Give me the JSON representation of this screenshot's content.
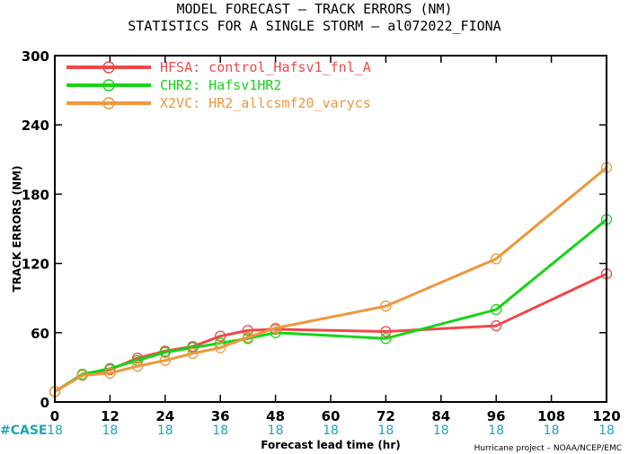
{
  "chart_data": {
    "type": "line",
    "title": "MODEL FORECAST – TRACK ERRORS (NM)",
    "subtitle": "STATISTICS FOR A SINGLE STORM – al072022_FIONA",
    "xlabel": "Forecast lead time (hr)",
    "ylabel": "TRACK ERRORS (NM)",
    "xlim": [
      0,
      120
    ],
    "ylim": [
      0,
      300
    ],
    "x_ticks": [
      "0",
      "12",
      "24",
      "36",
      "48",
      "60",
      "72",
      "84",
      "96",
      "108",
      "120"
    ],
    "y_ticks": [
      "0",
      "60",
      "120",
      "180",
      "240",
      "300"
    ],
    "y_tick_values": [
      0,
      60,
      120,
      180,
      240,
      300
    ],
    "x": [
      0,
      6,
      12,
      18,
      24,
      30,
      36,
      42,
      48,
      72,
      96,
      120
    ],
    "grid": false,
    "legend_position": "top-left",
    "series": [
      {
        "name": "HFSA: control_Hafsv1_fnl_A",
        "color": "#f04848",
        "values": [
          9,
          24,
          28,
          38,
          44,
          48,
          57,
          62,
          63,
          61,
          66,
          111
        ]
      },
      {
        "name": "CHR2: Hafsv1HR2",
        "color": "#18d418",
        "values": [
          9,
          24,
          29,
          36,
          43,
          47,
          51,
          55,
          60,
          55,
          80,
          158
        ]
      },
      {
        "name": "X2VC: HR2_allcsmf20_varycs",
        "color": "#f0963c",
        "values": [
          9,
          23,
          25,
          31,
          36,
          42,
          47,
          56,
          64,
          83,
          124,
          203
        ]
      }
    ],
    "case_label": "#CASE",
    "case_counts": [
      "18",
      "18",
      "18",
      "18",
      "18",
      "18",
      "18",
      "18",
      "18",
      "18",
      "18"
    ],
    "credit": "Hurricane project – NOAA/NCEP/EMC"
  }
}
